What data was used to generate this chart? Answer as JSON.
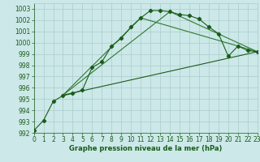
{
  "title": "Graphe pression niveau de la mer (hPa)",
  "background_color": "#cce8e8",
  "grid_color": "#aacccc",
  "line_color_dark": "#1a5c1a",
  "line_color_med": "#2d7a2d",
  "xlim": [
    0,
    23
  ],
  "ylim": [
    992,
    1003.5
  ],
  "yticks": [
    992,
    993,
    994,
    995,
    996,
    997,
    998,
    999,
    1000,
    1001,
    1002,
    1003
  ],
  "xticks": [
    0,
    1,
    2,
    3,
    4,
    5,
    6,
    7,
    8,
    9,
    10,
    11,
    12,
    13,
    14,
    15,
    16,
    17,
    18,
    19,
    20,
    21,
    22,
    23
  ],
  "series1_x": [
    0,
    1,
    2,
    3,
    4,
    5,
    6,
    7,
    8,
    9,
    10,
    11,
    12,
    13,
    14,
    15,
    16,
    17,
    18,
    19,
    20,
    21,
    22,
    23
  ],
  "series1_y": [
    992.2,
    993.1,
    994.8,
    995.3,
    995.5,
    995.8,
    997.8,
    998.3,
    999.7,
    1000.4,
    1001.4,
    1002.2,
    1002.85,
    1002.85,
    1002.75,
    1002.5,
    1002.4,
    1002.1,
    1001.4,
    1000.8,
    998.8,
    999.7,
    999.3,
    999.2
  ],
  "series2_x": [
    3,
    23
  ],
  "series2_y": [
    995.35,
    999.2
  ],
  "series3_x": [
    3,
    14,
    23
  ],
  "series3_y": [
    995.35,
    1002.75,
    999.2
  ],
  "series4_x": [
    3,
    11,
    23
  ],
  "series4_y": [
    995.35,
    1002.2,
    999.2
  ],
  "markersize": 2.2,
  "linewidth": 0.8,
  "tick_fontsize": 5.5,
  "xlabel_fontsize": 6.0
}
